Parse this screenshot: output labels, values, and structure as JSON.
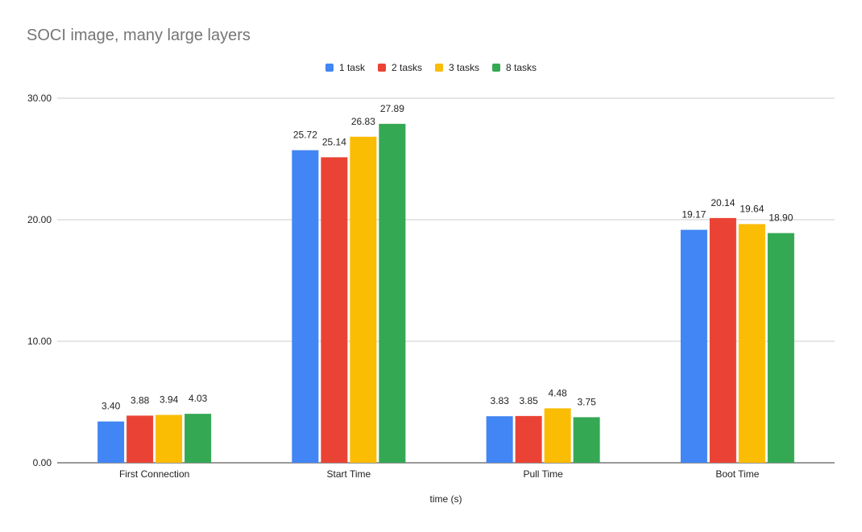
{
  "chart_data": {
    "type": "bar",
    "title": "SOCI image, many large layers",
    "xlabel": "time (s)",
    "ylabel": "",
    "categories": [
      "First Connection",
      "Start Time",
      "Pull Time",
      "Boot Time"
    ],
    "ylim": [
      0,
      30
    ],
    "yticks": [
      0,
      10,
      20,
      30
    ],
    "ytick_labels": [
      "0.00",
      "10.00",
      "20.00",
      "30.00"
    ],
    "grid": true,
    "legend_position": "top-center",
    "series": [
      {
        "name": "1 task",
        "color": "#4285F4",
        "values": [
          3.4,
          25.72,
          3.83,
          19.17
        ],
        "labels": [
          "3.40",
          "25.72",
          "3.83",
          "19.17"
        ]
      },
      {
        "name": "2 tasks",
        "color": "#EA4335",
        "values": [
          3.88,
          25.14,
          3.85,
          20.14
        ],
        "labels": [
          "3.88",
          "25.14",
          "3.85",
          "20.14"
        ]
      },
      {
        "name": "3 tasks",
        "color": "#FBBC04",
        "values": [
          3.94,
          26.83,
          4.48,
          19.64
        ],
        "labels": [
          "3.94",
          "26.83",
          "4.48",
          "19.64"
        ]
      },
      {
        "name": "8 tasks",
        "color": "#34A853",
        "values": [
          4.03,
          27.89,
          3.75,
          18.9
        ],
        "labels": [
          "4.03",
          "27.89",
          "3.75",
          "18.90"
        ]
      }
    ]
  }
}
